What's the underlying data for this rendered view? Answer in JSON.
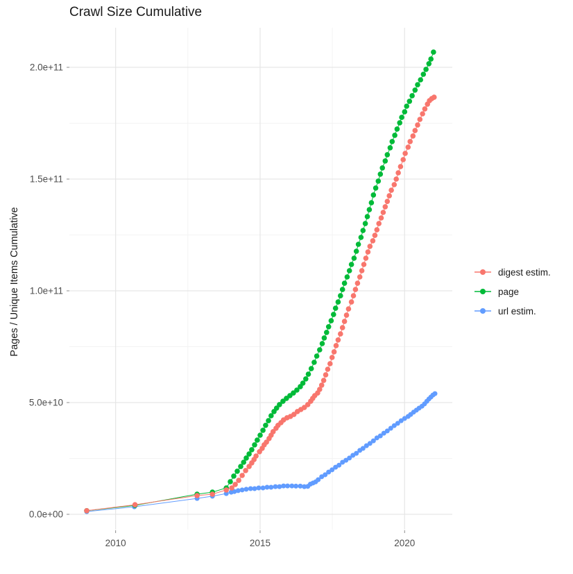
{
  "page": {
    "title": "Crawl Size Cumulative"
  },
  "axes": {
    "x": {
      "ticks": [
        {
          "label": "2010",
          "year": 2010
        },
        {
          "label": "2015",
          "year": 2015
        },
        {
          "label": "2020",
          "year": 2020
        }
      ],
      "minor_years": [
        2012.5,
        2017.5
      ]
    },
    "y": {
      "title": "Pages / Unique Items Cumulative",
      "ticks": [
        {
          "label": "0.0e+00",
          "value_e9": 0
        },
        {
          "label": "5.0e+10",
          "value_e9": 50
        },
        {
          "label": "1.0e+11",
          "value_e9": 100
        },
        {
          "label": "1.5e+11",
          "value_e9": 150
        },
        {
          "label": "2.0e+11",
          "value_e9": 200
        }
      ],
      "minor_e9": [
        25,
        75,
        125,
        175
      ]
    }
  },
  "legend": {
    "items": [
      {
        "label": "digest estim.",
        "color": "#F8766D",
        "series": "digest"
      },
      {
        "label": "page",
        "color": "#00BA38",
        "series": "page"
      },
      {
        "label": "url estim.",
        "color": "#619CFF",
        "series": "url"
      }
    ]
  },
  "chart_data": {
    "type": "scatter",
    "title": "Crawl Size Cumulative",
    "xlabel": "",
    "ylabel": "Pages / Unique Items Cumulative",
    "x_range": [
      2008.4,
      2021.65
    ],
    "y_range_e9": [
      -7,
      218
    ],
    "grid": true,
    "legend_position": "right",
    "units_note": "values in billions (1e9) of pages / unique items",
    "series": [
      {
        "name": "digest estim.",
        "color": "#F8766D",
        "points_year_value_e9": [
          [
            2009.0,
            1.6
          ],
          [
            2010.67,
            4.3
          ],
          [
            2012.82,
            8.4
          ],
          [
            2013.35,
            9.0
          ],
          [
            2013.83,
            10.9
          ],
          [
            2014.02,
            11.8
          ],
          [
            2014.14,
            13.4
          ],
          [
            2014.26,
            15.2
          ],
          [
            2014.38,
            17.4
          ],
          [
            2014.5,
            19.6
          ],
          [
            2014.62,
            21.4
          ],
          [
            2014.71,
            23.0
          ],
          [
            2014.79,
            24.5
          ],
          [
            2014.86,
            26.1
          ],
          [
            2014.98,
            28.0
          ],
          [
            2015.07,
            29.5
          ],
          [
            2015.14,
            31.1
          ],
          [
            2015.22,
            32.3
          ],
          [
            2015.31,
            33.9
          ],
          [
            2015.38,
            35.4
          ],
          [
            2015.45,
            37.0
          ],
          [
            2015.55,
            38.5
          ],
          [
            2015.62,
            39.8
          ],
          [
            2015.72,
            41.0
          ],
          [
            2015.81,
            42.2
          ],
          [
            2015.93,
            43.2
          ],
          [
            2016.05,
            43.8
          ],
          [
            2016.17,
            44.7
          ],
          [
            2016.29,
            46.0
          ],
          [
            2016.41,
            46.9
          ],
          [
            2016.53,
            47.8
          ],
          [
            2016.65,
            49.1
          ],
          [
            2016.75,
            50.6
          ],
          [
            2016.82,
            51.9
          ],
          [
            2016.89,
            53.1
          ],
          [
            2016.99,
            54.3
          ],
          [
            2017.06,
            55.9
          ],
          [
            2017.13,
            57.8
          ],
          [
            2017.2,
            59.9
          ],
          [
            2017.27,
            62.4
          ],
          [
            2017.34,
            64.9
          ],
          [
            2017.42,
            67.4
          ],
          [
            2017.49,
            70.2
          ],
          [
            2017.56,
            72.7
          ],
          [
            2017.63,
            75.5
          ],
          [
            2017.7,
            78.0
          ],
          [
            2017.78,
            80.7
          ],
          [
            2017.85,
            83.5
          ],
          [
            2017.92,
            86.3
          ],
          [
            2017.99,
            89.1
          ],
          [
            2018.06,
            91.9
          ],
          [
            2018.16,
            95.0
          ],
          [
            2018.23,
            97.8
          ],
          [
            2018.3,
            100.6
          ],
          [
            2018.37,
            103.4
          ],
          [
            2018.45,
            106.2
          ],
          [
            2018.52,
            109.0
          ],
          [
            2018.59,
            111.8
          ],
          [
            2018.66,
            114.6
          ],
          [
            2018.73,
            117.4
          ],
          [
            2018.8,
            119.9
          ],
          [
            2018.9,
            122.4
          ],
          [
            2018.97,
            124.8
          ],
          [
            2019.04,
            127.3
          ],
          [
            2019.11,
            130.1
          ],
          [
            2019.19,
            132.6
          ],
          [
            2019.26,
            135.1
          ],
          [
            2019.33,
            137.6
          ],
          [
            2019.4,
            140.0
          ],
          [
            2019.47,
            142.5
          ],
          [
            2019.54,
            145.0
          ],
          [
            2019.64,
            147.5
          ],
          [
            2019.71,
            150.0
          ],
          [
            2019.78,
            152.8
          ],
          [
            2019.86,
            155.6
          ],
          [
            2019.95,
            158.7
          ],
          [
            2020.02,
            161.5
          ],
          [
            2020.12,
            164.3
          ],
          [
            2020.19,
            166.8
          ],
          [
            2020.29,
            169.3
          ],
          [
            2020.36,
            171.7
          ],
          [
            2020.45,
            174.2
          ],
          [
            2020.53,
            176.7
          ],
          [
            2020.62,
            179.2
          ],
          [
            2020.7,
            181.4
          ],
          [
            2020.79,
            183.5
          ],
          [
            2020.86,
            185.1
          ],
          [
            2020.94,
            186.0
          ],
          [
            2021.02,
            186.6
          ]
        ]
      },
      {
        "name": "page",
        "color": "#00BA38",
        "points_year_value_e9": [
          [
            2009.0,
            1.6
          ],
          [
            2010.67,
            4.0
          ],
          [
            2012.82,
            9.0
          ],
          [
            2013.35,
            9.9
          ],
          [
            2013.83,
            11.8
          ],
          [
            2013.97,
            14.6
          ],
          [
            2014.09,
            17.1
          ],
          [
            2014.21,
            19.3
          ],
          [
            2014.33,
            21.4
          ],
          [
            2014.43,
            23.3
          ],
          [
            2014.52,
            25.2
          ],
          [
            2014.62,
            27.0
          ],
          [
            2014.71,
            28.9
          ],
          [
            2014.81,
            31.1
          ],
          [
            2014.9,
            33.2
          ],
          [
            2015.0,
            35.4
          ],
          [
            2015.1,
            37.6
          ],
          [
            2015.19,
            39.8
          ],
          [
            2015.29,
            41.9
          ],
          [
            2015.38,
            44.1
          ],
          [
            2015.48,
            46.0
          ],
          [
            2015.57,
            47.5
          ],
          [
            2015.67,
            49.1
          ],
          [
            2015.79,
            50.6
          ],
          [
            2015.91,
            51.9
          ],
          [
            2016.03,
            53.1
          ],
          [
            2016.15,
            54.3
          ],
          [
            2016.27,
            55.6
          ],
          [
            2016.39,
            57.1
          ],
          [
            2016.48,
            58.7
          ],
          [
            2016.58,
            60.6
          ],
          [
            2016.67,
            62.7
          ],
          [
            2016.77,
            65.2
          ],
          [
            2016.87,
            68.0
          ],
          [
            2016.96,
            70.8
          ],
          [
            2017.06,
            73.6
          ],
          [
            2017.15,
            76.4
          ],
          [
            2017.22,
            78.9
          ],
          [
            2017.3,
            81.4
          ],
          [
            2017.37,
            83.9
          ],
          [
            2017.46,
            86.6
          ],
          [
            2017.54,
            89.4
          ],
          [
            2017.61,
            92.2
          ],
          [
            2017.7,
            95.0
          ],
          [
            2017.78,
            97.8
          ],
          [
            2017.85,
            100.6
          ],
          [
            2017.92,
            103.4
          ],
          [
            2018.01,
            106.2
          ],
          [
            2018.09,
            109.0
          ],
          [
            2018.16,
            111.8
          ],
          [
            2018.25,
            114.6
          ],
          [
            2018.33,
            117.7
          ],
          [
            2018.4,
            120.8
          ],
          [
            2018.49,
            123.9
          ],
          [
            2018.56,
            127.0
          ],
          [
            2018.64,
            130.1
          ],
          [
            2018.71,
            133.2
          ],
          [
            2018.78,
            136.3
          ],
          [
            2018.85,
            139.4
          ],
          [
            2018.92,
            142.9
          ],
          [
            2019.0,
            146.0
          ],
          [
            2019.09,
            149.1
          ],
          [
            2019.16,
            152.2
          ],
          [
            2019.23,
            155.0
          ],
          [
            2019.33,
            158.1
          ],
          [
            2019.4,
            160.9
          ],
          [
            2019.5,
            164.0
          ],
          [
            2019.57,
            166.8
          ],
          [
            2019.66,
            169.6
          ],
          [
            2019.74,
            172.4
          ],
          [
            2019.83,
            175.2
          ],
          [
            2019.9,
            177.6
          ],
          [
            2020.0,
            180.1
          ],
          [
            2020.07,
            182.6
          ],
          [
            2020.17,
            184.8
          ],
          [
            2020.26,
            187.3
          ],
          [
            2020.36,
            189.8
          ],
          [
            2020.45,
            192.2
          ],
          [
            2020.55,
            194.4
          ],
          [
            2020.65,
            196.9
          ],
          [
            2020.74,
            199.1
          ],
          [
            2020.84,
            201.6
          ],
          [
            2020.91,
            203.7
          ],
          [
            2021.0,
            206.8
          ]
        ]
      },
      {
        "name": "url estim.",
        "color": "#619CFF",
        "points_year_value_e9": [
          [
            2009.0,
            1.2
          ],
          [
            2010.65,
            3.4
          ],
          [
            2012.82,
            7.1
          ],
          [
            2013.35,
            8.1
          ],
          [
            2013.83,
            9.3
          ],
          [
            2014.0,
            9.9
          ],
          [
            2014.11,
            10.2
          ],
          [
            2014.24,
            10.6
          ],
          [
            2014.38,
            10.9
          ],
          [
            2014.52,
            11.2
          ],
          [
            2014.67,
            11.5
          ],
          [
            2014.81,
            11.5
          ],
          [
            2014.95,
            11.8
          ],
          [
            2015.1,
            11.8
          ],
          [
            2015.24,
            12.1
          ],
          [
            2015.38,
            12.1
          ],
          [
            2015.53,
            12.4
          ],
          [
            2015.67,
            12.4
          ],
          [
            2015.81,
            12.7
          ],
          [
            2015.95,
            12.7
          ],
          [
            2016.1,
            12.7
          ],
          [
            2016.24,
            12.6
          ],
          [
            2016.39,
            12.6
          ],
          [
            2016.53,
            12.4
          ],
          [
            2016.65,
            12.5
          ],
          [
            2016.74,
            13.5
          ],
          [
            2016.83,
            14.0
          ],
          [
            2016.92,
            14.5
          ],
          [
            2017.01,
            15.5
          ],
          [
            2017.13,
            16.8
          ],
          [
            2017.25,
            17.7
          ],
          [
            2017.37,
            18.9
          ],
          [
            2017.49,
            19.9
          ],
          [
            2017.61,
            21.1
          ],
          [
            2017.73,
            22.0
          ],
          [
            2017.85,
            23.3
          ],
          [
            2017.97,
            24.2
          ],
          [
            2018.09,
            25.2
          ],
          [
            2018.21,
            26.4
          ],
          [
            2018.33,
            27.3
          ],
          [
            2018.45,
            28.6
          ],
          [
            2018.56,
            29.5
          ],
          [
            2018.68,
            30.7
          ],
          [
            2018.8,
            31.7
          ],
          [
            2018.92,
            32.9
          ],
          [
            2019.04,
            34.2
          ],
          [
            2019.16,
            35.1
          ],
          [
            2019.28,
            36.3
          ],
          [
            2019.4,
            37.3
          ],
          [
            2019.52,
            38.5
          ],
          [
            2019.64,
            39.7
          ],
          [
            2019.76,
            40.7
          ],
          [
            2019.88,
            41.9
          ],
          [
            2020.0,
            42.9
          ],
          [
            2020.12,
            43.8
          ],
          [
            2020.21,
            44.7
          ],
          [
            2020.31,
            45.7
          ],
          [
            2020.41,
            46.6
          ],
          [
            2020.5,
            47.5
          ],
          [
            2020.6,
            48.4
          ],
          [
            2020.69,
            49.4
          ],
          [
            2020.77,
            50.6
          ],
          [
            2020.84,
            51.6
          ],
          [
            2020.91,
            52.5
          ],
          [
            2020.98,
            53.4
          ],
          [
            2021.05,
            54.0
          ]
        ]
      }
    ]
  }
}
